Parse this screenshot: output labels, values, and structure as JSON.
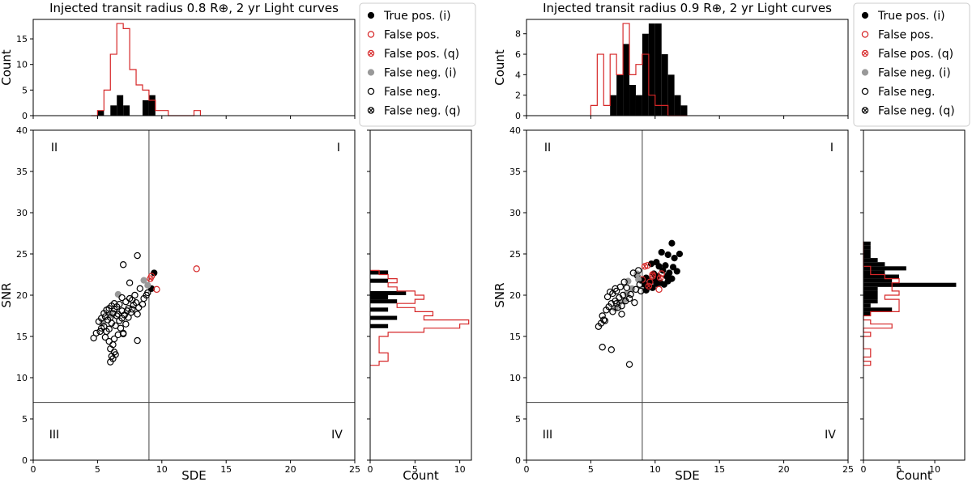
{
  "chart_data": [
    {
      "type": "scatter",
      "title": "Injected transit radius 0.8 R⊕, 2 yr Light curves",
      "xlabel": "SDE",
      "ylabel": "SNR",
      "xlim": [
        0,
        25
      ],
      "ylim": [
        0,
        40
      ],
      "xticks": [
        "0",
        "5",
        "10",
        "15",
        "20",
        "25"
      ],
      "yticks": [
        "0",
        "5",
        "10",
        "15",
        "20",
        "25",
        "30",
        "35",
        "40"
      ],
      "threshold_lines": {
        "sde": 9,
        "snr": 7
      },
      "quadrants": [
        "I",
        "II",
        "III",
        "IV"
      ],
      "legend_position": "right of top histogram",
      "legend": [
        {
          "label": "True pos. (i)",
          "marker": "filled",
          "color": "#000000"
        },
        {
          "label": "False pos.",
          "marker": "open",
          "color": "#d62728"
        },
        {
          "label": "False pos. (q)",
          "marker": "crossed",
          "color": "#d62728"
        },
        {
          "label": "False neg. (i)",
          "marker": "filled",
          "color": "#999999"
        },
        {
          "label": "False neg.",
          "marker": "open",
          "color": "#000000"
        },
        {
          "label": "False neg. (q)",
          "marker": "crossed",
          "color": "#000000"
        }
      ],
      "series": [
        {
          "name": "True pos. (i)",
          "points": [
            [
              9.4,
              22.7
            ],
            [
              9.2,
              20.8
            ]
          ]
        },
        {
          "name": "False pos.",
          "points": [
            [
              12.7,
              23.2
            ],
            [
              9.6,
              20.7
            ],
            [
              9.2,
              22.3
            ]
          ]
        },
        {
          "name": "False pos. (q)",
          "points": [
            [
              9.1,
              22.0
            ]
          ]
        },
        {
          "name": "False neg. (i)",
          "points": [
            [
              8.6,
              21.8
            ],
            [
              6.6,
              20.1
            ],
            [
              8.9,
              21.2
            ],
            [
              6.0,
              17.6
            ],
            [
              5.4,
              16.6
            ]
          ]
        },
        {
          "name": "False neg.",
          "points": [
            [
              8.1,
              24.8
            ],
            [
              7.0,
              23.7
            ],
            [
              7.5,
              21.5
            ],
            [
              8.3,
              20.8
            ],
            [
              8.6,
              19.6
            ],
            [
              8.0,
              19.1
            ],
            [
              7.8,
              18.8
            ],
            [
              8.2,
              18.5
            ],
            [
              7.6,
              17.9
            ],
            [
              7.3,
              18.1
            ],
            [
              7.1,
              17.6
            ],
            [
              6.9,
              17.2
            ],
            [
              6.7,
              16.9
            ],
            [
              6.5,
              17.5
            ],
            [
              6.3,
              18.3
            ],
            [
              6.2,
              17.8
            ],
            [
              6.0,
              17.3
            ],
            [
              5.8,
              17.0
            ],
            [
              5.6,
              17.4
            ],
            [
              5.5,
              16.2
            ],
            [
              5.7,
              15.6
            ],
            [
              5.9,
              15.9
            ],
            [
              6.1,
              16.6
            ],
            [
              6.4,
              16.3
            ],
            [
              6.6,
              15.2
            ],
            [
              6.8,
              16.0
            ],
            [
              7.0,
              15.4
            ],
            [
              7.2,
              16.5
            ],
            [
              7.4,
              17.3
            ],
            [
              7.7,
              18.3
            ],
            [
              8.1,
              17.7
            ],
            [
              8.5,
              18.9
            ],
            [
              8.9,
              20.3
            ],
            [
              7.9,
              20.0
            ],
            [
              7.5,
              19.6
            ],
            [
              7.2,
              19.2
            ],
            [
              6.9,
              19.7
            ],
            [
              6.7,
              18.9
            ],
            [
              6.5,
              18.6
            ],
            [
              6.3,
              19.0
            ],
            [
              6.1,
              18.7
            ],
            [
              5.9,
              18.4
            ],
            [
              5.7,
              18.2
            ],
            [
              5.5,
              17.8
            ],
            [
              5.3,
              17.2
            ],
            [
              5.1,
              16.8
            ],
            [
              5.3,
              16.0
            ],
            [
              4.9,
              15.4
            ],
            [
              4.7,
              14.8
            ],
            [
              5.2,
              15.6
            ],
            [
              5.6,
              14.9
            ],
            [
              5.9,
              14.4
            ],
            [
              6.2,
              14.0
            ],
            [
              6.0,
              13.5
            ],
            [
              6.3,
              13.1
            ],
            [
              6.1,
              12.6
            ],
            [
              6.2,
              12.3
            ],
            [
              6.0,
              11.9
            ],
            [
              6.4,
              12.8
            ],
            [
              7.0,
              15.3
            ],
            [
              8.1,
              14.5
            ],
            [
              6.3,
              14.7
            ],
            [
              6.9,
              18.1
            ],
            [
              6.6,
              17.7
            ],
            [
              7.4,
              18.4
            ],
            [
              8.8,
              20.0
            ],
            [
              7.7,
              19.4
            ]
          ]
        },
        {
          "name": "False neg. (q)",
          "points": []
        }
      ],
      "top_histogram": {
        "ylabel": "Count",
        "ylim": [
          0,
          18.8
        ],
        "yticks": [
          "0",
          "5",
          "10",
          "15"
        ],
        "bin_edges": [
          4.5,
          5.0,
          5.5,
          6.0,
          6.5,
          7.0,
          7.5,
          8.0,
          8.5,
          9.0,
          9.5,
          10.0,
          10.5,
          11.0,
          11.5,
          12.0,
          12.5,
          13.0
        ],
        "outline_counts": [
          0,
          1,
          5,
          12,
          18,
          17,
          9,
          6,
          5,
          3,
          1,
          1,
          0,
          0,
          0,
          0,
          1
        ],
        "filled_counts": [
          0,
          1,
          0,
          2,
          4,
          2,
          0,
          0,
          3,
          4,
          0,
          0,
          0,
          0,
          0,
          0,
          0
        ]
      },
      "right_histogram": {
        "xlabel": "Count",
        "xlim": [
          0,
          11.3
        ],
        "xticks": [
          "0",
          "5",
          "10"
        ],
        "bin_edges": [
          11.5,
          12.0,
          12.5,
          13.0,
          13.5,
          14.0,
          14.5,
          15.0,
          15.5,
          16.0,
          16.5,
          17.0,
          17.5,
          18.0,
          18.5,
          19.0,
          19.5,
          20.0,
          20.5,
          21.0,
          21.5,
          22.0,
          22.5,
          23.0
        ],
        "outline_counts": [
          1,
          2,
          2,
          1,
          1,
          1,
          1,
          2,
          6,
          10,
          11,
          6,
          7,
          5,
          3,
          5,
          6,
          5,
          3,
          2,
          3,
          2,
          1
        ],
        "filled_counts": [
          0,
          0,
          0,
          0,
          0,
          0,
          0,
          0,
          0,
          2,
          0,
          3,
          0,
          2,
          0,
          3,
          2,
          4,
          0,
          0,
          2,
          0,
          2
        ]
      }
    },
    {
      "type": "scatter",
      "title": "Injected transit radius 0.9 R⊕, 2 yr Light curves",
      "xlabel": "SDE",
      "ylabel": "SNR",
      "xlim": [
        0,
        25
      ],
      "ylim": [
        0,
        40
      ],
      "xticks": [
        "0",
        "5",
        "10",
        "15",
        "20",
        "25"
      ],
      "yticks": [
        "0",
        "5",
        "10",
        "15",
        "20",
        "25",
        "30",
        "35",
        "40"
      ],
      "threshold_lines": {
        "sde": 9,
        "snr": 7
      },
      "quadrants": [
        "I",
        "II",
        "III",
        "IV"
      ],
      "legend_position": "right of top histogram",
      "legend": [
        {
          "label": "True pos. (i)",
          "marker": "filled",
          "color": "#000000"
        },
        {
          "label": "False pos.",
          "marker": "open",
          "color": "#d62728"
        },
        {
          "label": "False pos. (q)",
          "marker": "crossed",
          "color": "#d62728"
        },
        {
          "label": "False neg. (i)",
          "marker": "filled",
          "color": "#999999"
        },
        {
          "label": "False neg.",
          "marker": "open",
          "color": "#000000"
        },
        {
          "label": "False neg. (q)",
          "marker": "crossed",
          "color": "#000000"
        }
      ],
      "series": [
        {
          "name": "True pos. (i)",
          "points": [
            [
              11.3,
              26.3
            ],
            [
              11.9,
              25.0
            ],
            [
              10.5,
              25.2
            ],
            [
              11.0,
              24.9
            ],
            [
              11.5,
              24.5
            ],
            [
              10.1,
              24.0
            ],
            [
              9.7,
              23.8
            ],
            [
              10.3,
              23.5
            ],
            [
              10.8,
              23.6
            ],
            [
              11.4,
              23.4
            ],
            [
              10.6,
              23.0
            ],
            [
              11.1,
              22.7
            ],
            [
              11.7,
              22.9
            ],
            [
              9.9,
              22.6
            ],
            [
              10.2,
              22.3
            ],
            [
              10.9,
              22.3
            ],
            [
              11.3,
              22.0
            ],
            [
              9.3,
              22.1
            ],
            [
              9.6,
              21.7
            ],
            [
              10.0,
              21.8
            ],
            [
              10.4,
              21.5
            ],
            [
              10.7,
              21.3
            ],
            [
              9.5,
              21.0
            ],
            [
              9.8,
              20.9
            ],
            [
              10.1,
              21.4
            ],
            [
              11.0,
              21.7
            ],
            [
              9.2,
              21.3
            ],
            [
              8.6,
              22.4
            ],
            [
              8.9,
              21.8
            ],
            [
              9.3,
              20.6
            ]
          ]
        },
        {
          "name": "False pos.",
          "points": [
            [
              9.4,
              23.6
            ],
            [
              9.6,
              21.6
            ],
            [
              10.3,
              20.7
            ],
            [
              9.0,
              21.9
            ],
            [
              9.8,
              22.3
            ],
            [
              10.5,
              22.6
            ]
          ]
        },
        {
          "name": "False pos. (q)",
          "points": [
            [
              9.2,
              23.5
            ],
            [
              9.8,
              22.5
            ],
            [
              10.4,
              22.1
            ],
            [
              9.5,
              21.1
            ]
          ]
        },
        {
          "name": "False neg. (i)",
          "points": [
            [
              8.6,
              22.6
            ],
            [
              7.9,
              21.7
            ],
            [
              8.2,
              20.8
            ],
            [
              7.6,
              19.4
            ],
            [
              7.2,
              19.1
            ],
            [
              6.9,
              18.4
            ],
            [
              8.7,
              21.9
            ],
            [
              7.8,
              20.2
            ]
          ]
        },
        {
          "name": "False neg.",
          "points": [
            [
              8.7,
              23.0
            ],
            [
              8.3,
              22.7
            ],
            [
              7.6,
              21.6
            ],
            [
              7.3,
              21.0
            ],
            [
              7.0,
              20.5
            ],
            [
              6.7,
              20.2
            ],
            [
              7.8,
              20.9
            ],
            [
              8.1,
              20.1
            ],
            [
              8.5,
              20.7
            ],
            [
              8.8,
              21.3
            ],
            [
              7.5,
              20.0
            ],
            [
              7.2,
              19.7
            ],
            [
              6.9,
              19.3
            ],
            [
              6.6,
              19.0
            ],
            [
              6.4,
              18.6
            ],
            [
              6.2,
              18.2
            ],
            [
              7.0,
              19.0
            ],
            [
              7.4,
              18.7
            ],
            [
              7.7,
              19.3
            ],
            [
              8.0,
              19.6
            ],
            [
              6.0,
              17.0
            ],
            [
              5.8,
              16.6
            ],
            [
              5.6,
              16.2
            ],
            [
              5.9,
              17.5
            ],
            [
              6.1,
              16.9
            ],
            [
              6.7,
              18.0
            ],
            [
              7.1,
              18.5
            ],
            [
              6.3,
              19.8
            ],
            [
              6.5,
              20.4
            ],
            [
              6.9,
              20.8
            ],
            [
              8.9,
              20.5
            ],
            [
              5.9,
              13.7
            ],
            [
              6.6,
              13.4
            ],
            [
              8.0,
              11.6
            ],
            [
              7.4,
              17.7
            ],
            [
              8.4,
              19.1
            ]
          ]
        },
        {
          "name": "False neg. (q)",
          "points": []
        }
      ],
      "top_histogram": {
        "ylabel": "Count",
        "ylim": [
          0,
          9.4
        ],
        "yticks": [
          "0",
          "2",
          "4",
          "6",
          "8"
        ],
        "bin_edges": [
          5.0,
          5.5,
          6.0,
          6.5,
          7.0,
          7.5,
          8.0,
          8.5,
          9.0,
          9.5,
          10.0,
          10.5,
          11.0,
          11.5,
          12.0,
          12.5
        ],
        "outline_counts": [
          1,
          6,
          1,
          6,
          4,
          9,
          4,
          5,
          6,
          2,
          1,
          1,
          0,
          0,
          0
        ],
        "filled_counts": [
          0,
          0,
          0,
          2,
          4,
          7,
          3,
          2,
          8,
          9,
          9,
          6,
          4,
          2,
          1
        ]
      },
      "right_histogram": {
        "xlabel": "Count",
        "xlim": [
          0,
          14.2
        ],
        "xticks": [
          "0",
          "5",
          "10"
        ],
        "bin_edges": [
          11.5,
          12.0,
          12.5,
          13.0,
          13.5,
          14.0,
          14.5,
          15.0,
          15.5,
          16.0,
          16.5,
          17.0,
          17.5,
          18.0,
          18.5,
          19.0,
          19.5,
          20.0,
          20.5,
          21.0,
          21.5,
          22.0,
          22.5,
          23.0,
          23.5,
          24.0,
          24.5,
          25.0,
          25.5,
          26.0,
          26.5
        ],
        "outline_counts": [
          1,
          0,
          1,
          1,
          0,
          0,
          0,
          1,
          0,
          4,
          1,
          0,
          1,
          5,
          5,
          5,
          3,
          5,
          4,
          4,
          5,
          3,
          1,
          1,
          0,
          0,
          0,
          0,
          0,
          0
        ],
        "filled_counts": [
          0,
          0,
          0,
          0,
          0,
          0,
          0,
          0,
          0,
          0,
          0,
          0,
          1,
          4,
          1,
          2,
          2,
          2,
          2,
          13,
          4,
          5,
          3,
          6,
          3,
          2,
          1,
          1,
          1,
          1
        ]
      }
    }
  ]
}
